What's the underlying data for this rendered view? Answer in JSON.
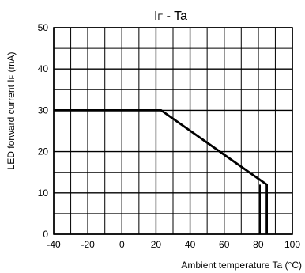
{
  "chart_data": {
    "type": "line",
    "title": {
      "main": "I",
      "sub": "F",
      "rest": " - Ta"
    },
    "xlabel": "Ambient temperature Ta (°C)",
    "ylabel": {
      "main": "LED forward current I",
      "sub": "F",
      "rest": " (mA)"
    },
    "xlim": [
      -40,
      100
    ],
    "ylim": [
      0,
      50
    ],
    "x_ticks": [
      -40,
      -20,
      0,
      20,
      40,
      60,
      80,
      100
    ],
    "y_ticks": [
      0,
      10,
      20,
      30,
      40,
      50
    ],
    "x_minor_step": 10,
    "y_minor_step": 5,
    "grid": true,
    "series": [
      {
        "points": [
          [
            -40,
            30
          ],
          [
            23,
            30
          ],
          [
            85,
            12
          ],
          [
            85,
            0
          ]
        ]
      }
    ],
    "vertical_markers": [
      81
    ]
  }
}
